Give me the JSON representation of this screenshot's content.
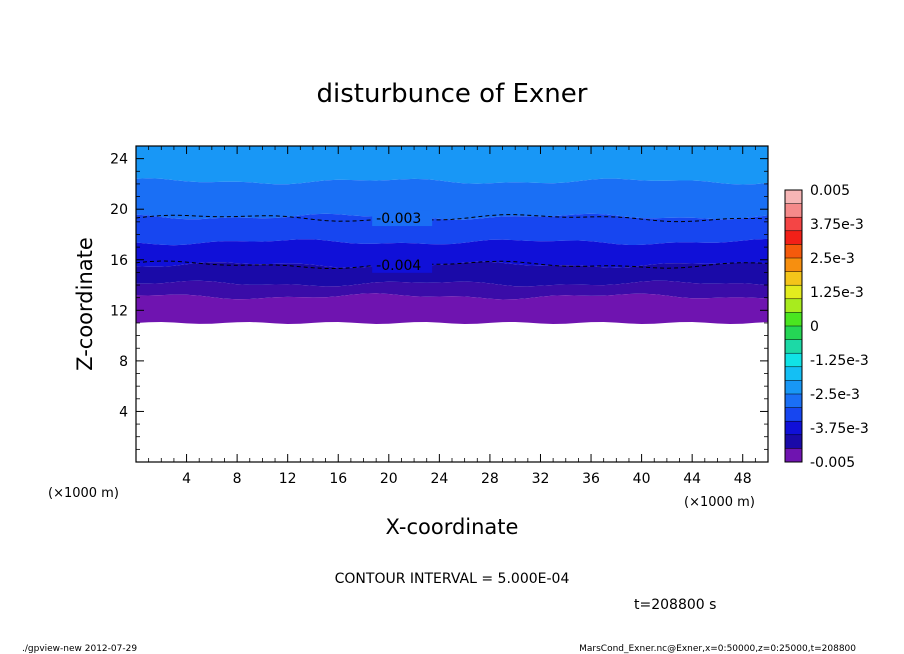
{
  "chart_data": {
    "type": "heatmap",
    "title": "disturbunce of Exner",
    "xlabel": "X-coordinate",
    "ylabel": "Z-coordinate",
    "x_unit": "(×1000 m)",
    "y_unit": "(×1000 m)",
    "xlim": [
      0,
      50
    ],
    "ylim": [
      0,
      25
    ],
    "x_ticks": [
      4,
      8,
      12,
      16,
      20,
      24,
      28,
      32,
      36,
      40,
      44,
      48
    ],
    "y_ticks": [
      4,
      8,
      12,
      16,
      20,
      24
    ],
    "colorbar": {
      "min": -0.005,
      "max": 0.005,
      "step": 0.0005,
      "labels": [
        "0.005",
        "3.75e-3",
        "2.5e-3",
        "1.25e-3",
        "0",
        "-1.25e-3",
        "-2.5e-3",
        "-3.75e-3",
        "-0.005"
      ],
      "colors": [
        "#f6b5b5",
        "#f58a8a",
        "#f44545",
        "#f22018",
        "#f55a0c",
        "#f78f0f",
        "#f4c51a",
        "#e3ec1e",
        "#a8eb1e",
        "#4ae520",
        "#25d655",
        "#1cd9a6",
        "#10e3e6",
        "#14bff4",
        "#1897f6",
        "#1a6ff5",
        "#1746f0",
        "#1010d8",
        "#1a0aa8",
        "#6f14b0"
      ]
    },
    "bands": [
      {
        "z_top": 25.0,
        "level": -0.0025,
        "color": "#1897f6"
      },
      {
        "z_top": 22.2,
        "level": -0.003,
        "color": "#1a6ff5"
      },
      {
        "z_top": 19.4,
        "level": -0.0035,
        "color": "#1746f0"
      },
      {
        "z_top": 17.4,
        "level": -0.004,
        "color": "#1010d8"
      },
      {
        "z_top": 15.6,
        "level": -0.0045,
        "color": "#1a0aa8"
      },
      {
        "z_top": 14.1,
        "level": -0.0048,
        "color": "#3a0ca8"
      },
      {
        "z_top": 13.1,
        "level": -0.005,
        "color": "#6f14b0"
      }
    ],
    "data_floor_z": 11.0,
    "contours": [
      {
        "level": -0.003,
        "label": "-0.003",
        "label_x": 19,
        "z": 19.3
      },
      {
        "level": -0.004,
        "label": "-0.004",
        "label_x": 19,
        "z": 15.6
      }
    ]
  },
  "contour_interval": "CONTOUR INTERVAL = 5.000E-04",
  "time_label": "t=208800 s",
  "footer_left": "./gpview-new   2012-07-29",
  "footer_right": "MarsCond_Exner.nc@Exner,x=0:50000,z=0:25000,t=208800"
}
